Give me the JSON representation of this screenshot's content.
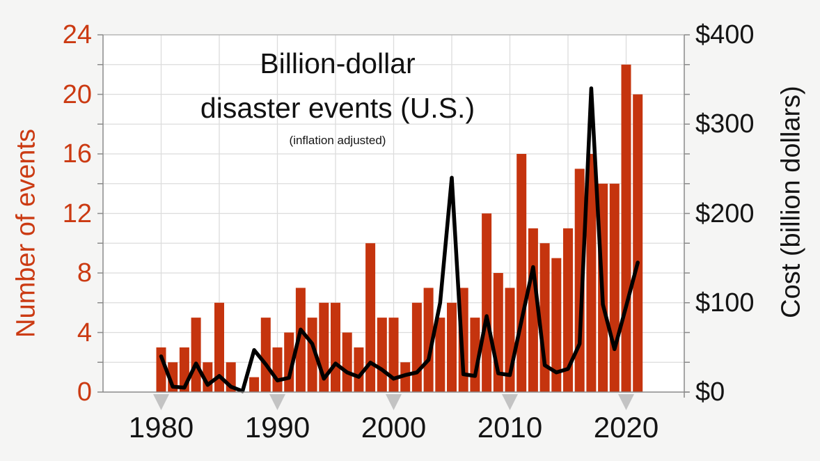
{
  "title": {
    "line1": "Billion-dollar",
    "line2": "disaster events (U.S.)",
    "subtitle": "(inflation adjusted)"
  },
  "left_axis": {
    "label": "Number of events",
    "color": "#cb3a12",
    "ticks": [
      {
        "value": 0,
        "label": "0"
      },
      {
        "value": 4,
        "label": "4"
      },
      {
        "value": 8,
        "label": "8"
      },
      {
        "value": 12,
        "label": "12"
      },
      {
        "value": 16,
        "label": "16"
      },
      {
        "value": 20,
        "label": "20"
      },
      {
        "value": 24,
        "label": "24"
      }
    ]
  },
  "right_axis": {
    "label": "Cost (billion dollars)",
    "color": "#141414",
    "ticks": [
      {
        "value": 0,
        "label": "$0"
      },
      {
        "value": 100,
        "label": "$100"
      },
      {
        "value": 200,
        "label": "$200"
      },
      {
        "value": 300,
        "label": "$300"
      },
      {
        "value": 400,
        "label": "$400"
      }
    ]
  },
  "x_axis": {
    "ticks": [
      {
        "value": 1980,
        "label": "1980"
      },
      {
        "value": 1990,
        "label": "1990"
      },
      {
        "value": 2000,
        "label": "2000"
      },
      {
        "value": 2010,
        "label": "2010"
      },
      {
        "value": 2020,
        "label": "2020"
      }
    ]
  },
  "chart_data": {
    "type": "bar",
    "x": [
      1980,
      1981,
      1982,
      1983,
      1984,
      1985,
      1986,
      1987,
      1988,
      1989,
      1990,
      1991,
      1992,
      1993,
      1994,
      1995,
      1996,
      1997,
      1998,
      1999,
      2000,
      2001,
      2002,
      2003,
      2004,
      2005,
      2006,
      2007,
      2008,
      2009,
      2010,
      2011,
      2012,
      2013,
      2014,
      2015,
      2016,
      2017,
      2018,
      2019,
      2020,
      2021
    ],
    "series": [
      {
        "name": "Number of events",
        "type": "bar",
        "axis": "left",
        "color": "#c5340e",
        "values": [
          3,
          2,
          3,
          5,
          2,
          6,
          2,
          0,
          1,
          5,
          3,
          4,
          7,
          5,
          6,
          6,
          4,
          3,
          10,
          5,
          5,
          2,
          6,
          7,
          5,
          6,
          7,
          5,
          12,
          8,
          7,
          16,
          11,
          10,
          9,
          11,
          15,
          16,
          14,
          14,
          22,
          20
        ]
      },
      {
        "name": "Cost (billion dollars)",
        "type": "line",
        "axis": "right",
        "color": "#000000",
        "values": [
          40,
          6,
          5,
          32,
          8,
          18,
          6,
          1,
          47,
          31,
          13,
          16,
          70,
          54,
          15,
          32,
          22,
          17,
          33,
          25,
          15,
          19,
          22,
          36,
          100,
          240,
          20,
          18,
          85,
          21,
          19,
          80,
          140,
          30,
          22,
          26,
          54,
          340,
          98,
          48,
          96,
          145
        ]
      }
    ],
    "xlim": [
      1975,
      2025
    ],
    "left_ylim": [
      0,
      24
    ],
    "right_ylim": [
      0,
      400
    ],
    "grid": true,
    "legend_position": "none",
    "grid_color": "#dcdcdc",
    "spine_color": "#8a8a8a",
    "marker_color": "#c3c3c3",
    "plot_bg": "#ffffff"
  }
}
